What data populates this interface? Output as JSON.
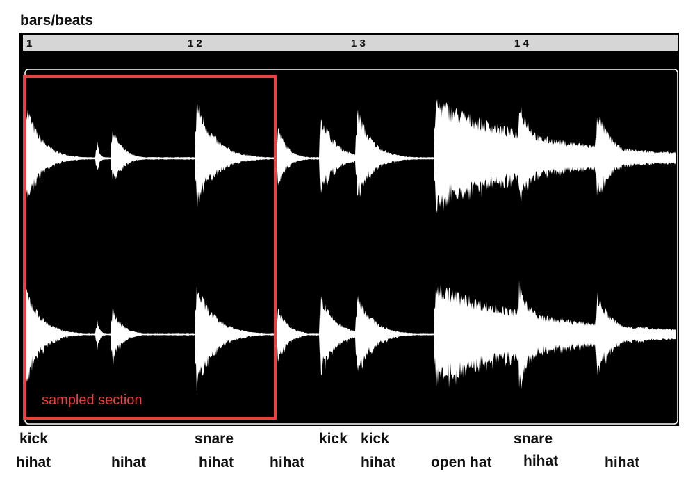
{
  "title": "bars/beats",
  "ruler": [
    "1",
    "1 2",
    "1 3",
    "1 4"
  ],
  "annotation": "sampled section",
  "hits_top": [
    "kick",
    "snare",
    "kick",
    "kick",
    "snare"
  ],
  "hits_bottom": [
    "hihat",
    "hihat",
    "hihat",
    "hihat",
    "hihat",
    "open hat",
    "hihat",
    "hihat"
  ]
}
